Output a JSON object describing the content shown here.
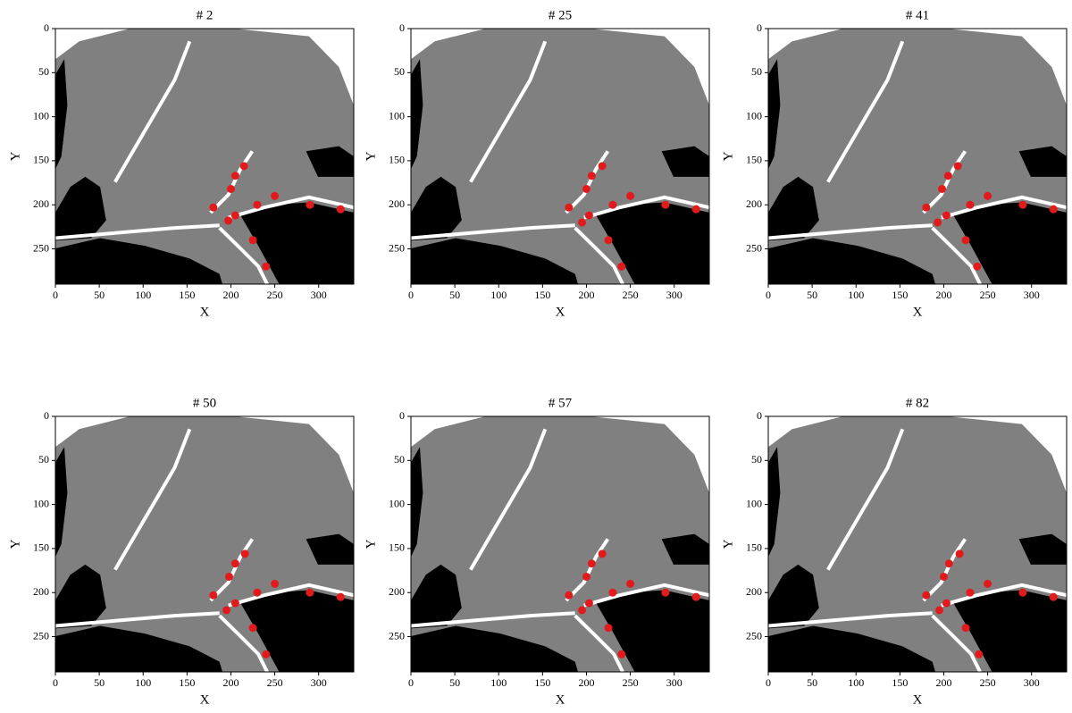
{
  "chart_data": [
    {
      "type": "scatter",
      "title": "# 2",
      "xlabel": "X",
      "ylabel": "Y",
      "xlim": [
        0,
        340
      ],
      "ylim": [
        290,
        0
      ],
      "xticks": [
        0,
        50,
        100,
        150,
        200,
        250,
        300
      ],
      "yticks": [
        0,
        50,
        100,
        150,
        200,
        250
      ],
      "color": "#e31a1c",
      "x": [
        180,
        200,
        205,
        215,
        197,
        205,
        230,
        250,
        290,
        325,
        225,
        240
      ],
      "values": [
        203,
        182,
        167,
        156,
        218,
        212,
        200,
        190,
        200,
        205,
        240,
        270
      ]
    },
    {
      "type": "scatter",
      "title": "# 25",
      "xlabel": "X",
      "ylabel": "Y",
      "xlim": [
        0,
        340
      ],
      "ylim": [
        290,
        0
      ],
      "xticks": [
        0,
        50,
        100,
        150,
        200,
        250,
        300
      ],
      "yticks": [
        0,
        50,
        100,
        150,
        200,
        250
      ],
      "color": "#e31a1c",
      "x": [
        180,
        200,
        206,
        218,
        195,
        203,
        230,
        250,
        290,
        325,
        225,
        240
      ],
      "values": [
        203,
        182,
        167,
        156,
        220,
        212,
        200,
        190,
        200,
        205,
        240,
        270
      ]
    },
    {
      "type": "scatter",
      "title": "# 41",
      "xlabel": "X",
      "ylabel": "Y",
      "xlim": [
        0,
        340
      ],
      "ylim": [
        290,
        0
      ],
      "xticks": [
        0,
        50,
        100,
        150,
        200,
        250,
        300
      ],
      "yticks": [
        0,
        50,
        100,
        150,
        200,
        250
      ],
      "color": "#e31a1c",
      "x": [
        180,
        198,
        205,
        216,
        193,
        203,
        230,
        250,
        290,
        325,
        225,
        238
      ],
      "values": [
        203,
        182,
        167,
        156,
        220,
        212,
        200,
        190,
        200,
        205,
        240,
        270
      ]
    },
    {
      "type": "scatter",
      "title": "# 50",
      "xlabel": "X",
      "ylabel": "Y",
      "xlim": [
        0,
        340
      ],
      "ylim": [
        290,
        0
      ],
      "xticks": [
        0,
        50,
        100,
        150,
        200,
        250,
        300
      ],
      "yticks": [
        0,
        50,
        100,
        150,
        200,
        250
      ],
      "color": "#e31a1c",
      "x": [
        180,
        198,
        205,
        216,
        195,
        205,
        230,
        250,
        290,
        325,
        225,
        240
      ],
      "values": [
        203,
        182,
        167,
        156,
        220,
        212,
        200,
        190,
        200,
        205,
        240,
        270
      ]
    },
    {
      "type": "scatter",
      "title": "# 57",
      "xlabel": "X",
      "ylabel": "Y",
      "xlim": [
        0,
        340
      ],
      "ylim": [
        290,
        0
      ],
      "xticks": [
        0,
        50,
        100,
        150,
        200,
        250,
        300
      ],
      "yticks": [
        0,
        50,
        100,
        150,
        200,
        250
      ],
      "color": "#e31a1c",
      "x": [
        180,
        200,
        206,
        218,
        195,
        203,
        230,
        250,
        290,
        325,
        225,
        240
      ],
      "values": [
        203,
        182,
        167,
        156,
        220,
        212,
        200,
        190,
        200,
        205,
        240,
        270
      ]
    },
    {
      "type": "scatter",
      "title": "# 82",
      "xlabel": "X",
      "ylabel": "Y",
      "xlim": [
        0,
        340
      ],
      "ylim": [
        290,
        0
      ],
      "xticks": [
        0,
        50,
        100,
        150,
        200,
        250,
        300
      ],
      "yticks": [
        0,
        50,
        100,
        150,
        200,
        250
      ],
      "color": "#e31a1c",
      "x": [
        180,
        200,
        206,
        218,
        195,
        203,
        230,
        250,
        290,
        325,
        225,
        240
      ],
      "values": [
        203,
        182,
        167,
        156,
        220,
        212,
        200,
        190,
        200,
        205,
        240,
        270
      ]
    }
  ]
}
